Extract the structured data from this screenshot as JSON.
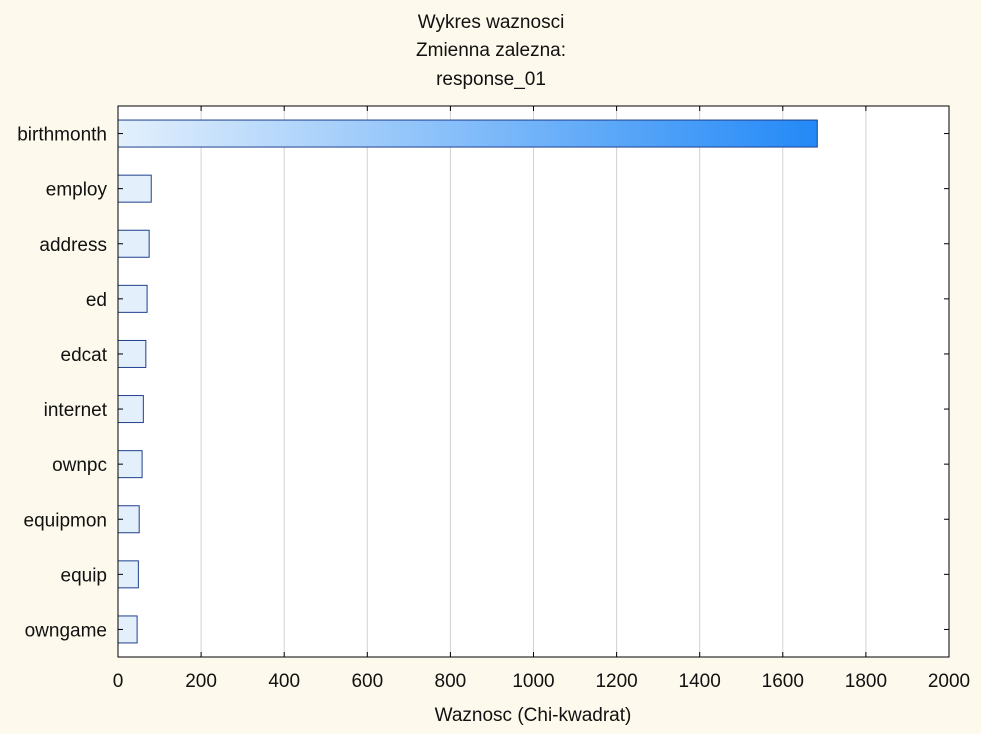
{
  "chart_data": {
    "type": "bar",
    "orientation": "horizontal",
    "title_lines": [
      "Wykres waznosci",
      "Zmienna zalezna:",
      "response_01"
    ],
    "xlabel": "Waznosc (Chi-kwadrat)",
    "ylabel": "",
    "categories": [
      "birthmonth",
      "employ",
      "address",
      "ed",
      "edcat",
      "internet",
      "ownpc",
      "equipmon",
      "equip",
      "owngame"
    ],
    "values": [
      1683,
      80,
      75,
      70,
      67,
      61,
      58,
      51,
      49,
      46
    ],
    "xlim": [
      0,
      2000
    ],
    "xticks": [
      0,
      200,
      400,
      600,
      800,
      1000,
      1200,
      1400,
      1600,
      1800,
      2000
    ],
    "grid": "vertical",
    "legend": "none",
    "colors": {
      "bar_light": "#e3f0fc",
      "bar_dark": "#2389f7",
      "bar_edge": "#1f3f8f",
      "grid": "#d2d2d2",
      "background": "#fdf9ec",
      "plot_background": "#ffffff"
    }
  }
}
